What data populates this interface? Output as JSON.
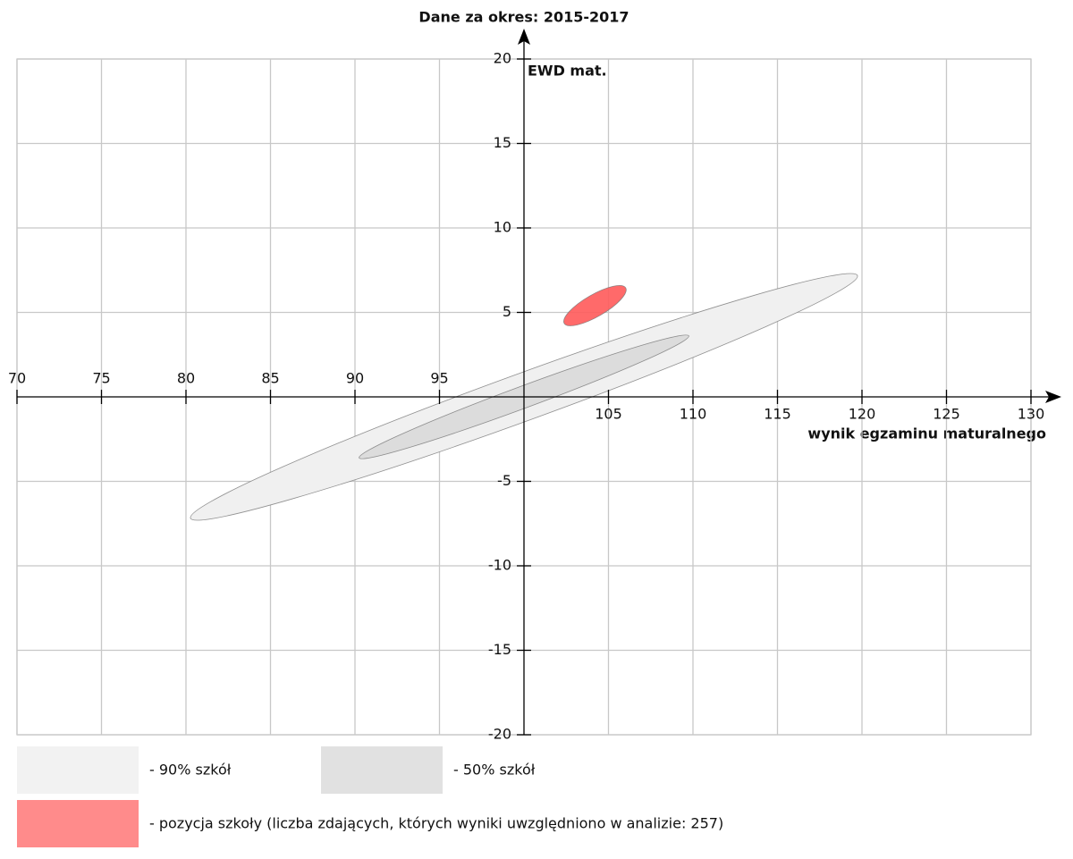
{
  "chart_data": {
    "type": "ellipse",
    "title": "Dane za okres: 2015-2017",
    "x_label": "wynik egzaminu maturalnego",
    "y_label": "EWD mat.",
    "xlim": [
      70,
      130
    ],
    "ylim": [
      -20,
      20
    ],
    "xticks": [
      70,
      75,
      80,
      85,
      90,
      95,
      105,
      110,
      115,
      120,
      125,
      130
    ],
    "yticks": [
      -20,
      -15,
      -10,
      -5,
      5,
      10,
      15,
      20
    ],
    "grid": true,
    "series": [
      {
        "name": "- 90% szkół",
        "color": "#f0f0f0",
        "cx": 100,
        "cy": 0,
        "rx": 21,
        "ry": 1.4,
        "angle": 20
      },
      {
        "name": "- 50% szkół",
        "color": "#dcdcdc",
        "cx": 100,
        "cy": 0,
        "rx": 10.4,
        "ry": 0.65,
        "angle": 20.3
      },
      {
        "name": "- pozycja szkoły (liczba zdających, których wyniki uwzględniono w analizie: 257)",
        "color": "#ff5a5a",
        "cx": 104.2,
        "cy": 5.4,
        "rx": 2.1,
        "ry": 0.65,
        "angle": 30
      }
    ]
  }
}
